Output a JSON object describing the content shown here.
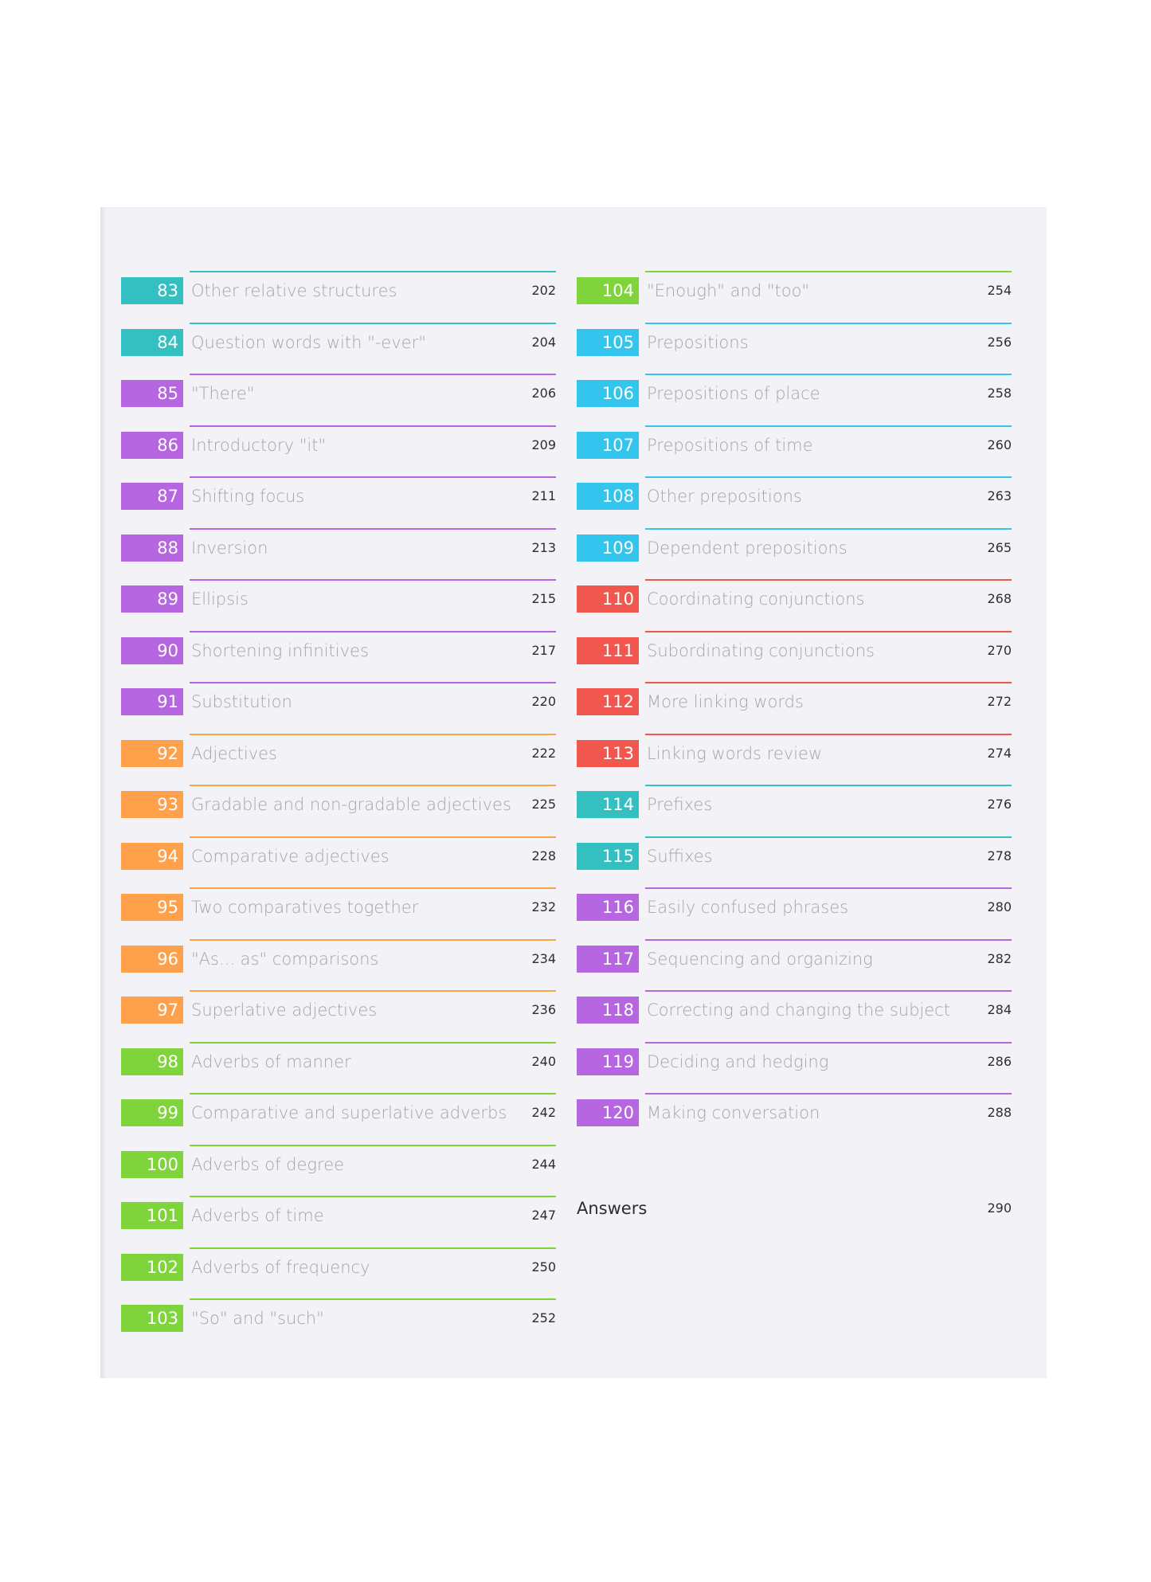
{
  "colors": {
    "teal": "#34c0c0",
    "purple": "#b566e0",
    "orange": "#ffa04a",
    "green": "#7fd43c",
    "blue": "#33c5ee",
    "red": "#f2574f"
  },
  "left_column": [
    {
      "num": "83",
      "title": "Other relative structures",
      "page": "202",
      "color": "#34c0c0"
    },
    {
      "num": "84",
      "title": "Question words with \"-ever\"",
      "page": "204",
      "color": "#34c0c0"
    },
    {
      "num": "85",
      "title": "\"There\"",
      "page": "206",
      "color": "#b566e0"
    },
    {
      "num": "86",
      "title": "Introductory \"it\"",
      "page": "209",
      "color": "#b566e0"
    },
    {
      "num": "87",
      "title": "Shifting focus",
      "page": "211",
      "color": "#b566e0"
    },
    {
      "num": "88",
      "title": "Inversion",
      "page": "213",
      "color": "#b566e0"
    },
    {
      "num": "89",
      "title": "Ellipsis",
      "page": "215",
      "color": "#b566e0"
    },
    {
      "num": "90",
      "title": "Shortening infinitives",
      "page": "217",
      "color": "#b566e0"
    },
    {
      "num": "91",
      "title": "Substitution",
      "page": "220",
      "color": "#b566e0"
    },
    {
      "num": "92",
      "title": "Adjectives",
      "page": "222",
      "color": "#ffa04a"
    },
    {
      "num": "93",
      "title": "Gradable and non-gradable adjectives",
      "page": "225",
      "color": "#ffa04a"
    },
    {
      "num": "94",
      "title": "Comparative adjectives",
      "page": "228",
      "color": "#ffa04a"
    },
    {
      "num": "95",
      "title": "Two comparatives together",
      "page": "232",
      "color": "#ffa04a"
    },
    {
      "num": "96",
      "title": "\"As... as\" comparisons",
      "page": "234",
      "color": "#ffa04a"
    },
    {
      "num": "97",
      "title": "Superlative adjectives",
      "page": "236",
      "color": "#ffa04a"
    },
    {
      "num": "98",
      "title": "Adverbs of manner",
      "page": "240",
      "color": "#7fd43c"
    },
    {
      "num": "99",
      "title": "Comparative and superlative adverbs",
      "page": "242",
      "color": "#7fd43c"
    },
    {
      "num": "100",
      "title": "Adverbs of degree",
      "page": "244",
      "color": "#7fd43c"
    },
    {
      "num": "101",
      "title": "Adverbs of time",
      "page": "247",
      "color": "#7fd43c"
    },
    {
      "num": "102",
      "title": "Adverbs of frequency",
      "page": "250",
      "color": "#7fd43c"
    },
    {
      "num": "103",
      "title": "\"So\" and \"such\"",
      "page": "252",
      "color": "#7fd43c"
    }
  ],
  "right_column": [
    {
      "num": "104",
      "title": "\"Enough\" and \"too\"",
      "page": "254",
      "color": "#7fd43c"
    },
    {
      "num": "105",
      "title": "Prepositions",
      "page": "256",
      "color": "#33c5ee"
    },
    {
      "num": "106",
      "title": "Prepositions of place",
      "page": "258",
      "color": "#33c5ee"
    },
    {
      "num": "107",
      "title": "Prepositions of time",
      "page": "260",
      "color": "#33c5ee"
    },
    {
      "num": "108",
      "title": "Other prepositions",
      "page": "263",
      "color": "#33c5ee"
    },
    {
      "num": "109",
      "title": "Dependent prepositions",
      "page": "265",
      "color": "#33c5ee"
    },
    {
      "num": "110",
      "title": "Coordinating conjunctions",
      "page": "268",
      "color": "#f2574f"
    },
    {
      "num": "111",
      "title": "Subordinating conjunctions",
      "page": "270",
      "color": "#f2574f"
    },
    {
      "num": "112",
      "title": "More linking words",
      "page": "272",
      "color": "#f2574f"
    },
    {
      "num": "113",
      "title": "Linking words review",
      "page": "274",
      "color": "#f2574f"
    },
    {
      "num": "114",
      "title": "Prefixes",
      "page": "276",
      "color": "#34c0c0"
    },
    {
      "num": "115",
      "title": "Suffixes",
      "page": "278",
      "color": "#34c0c0"
    },
    {
      "num": "116",
      "title": "Easily confused phrases",
      "page": "280",
      "color": "#b566e0"
    },
    {
      "num": "117",
      "title": "Sequencing and organizing",
      "page": "282",
      "color": "#b566e0"
    },
    {
      "num": "118",
      "title": "Correcting and changing the subject",
      "page": "284",
      "color": "#b566e0"
    },
    {
      "num": "119",
      "title": "Deciding and hedging",
      "page": "286",
      "color": "#b566e0"
    },
    {
      "num": "120",
      "title": "Making conversation",
      "page": "288",
      "color": "#b566e0"
    }
  ],
  "answers": {
    "label": "Answers",
    "page": "290"
  }
}
